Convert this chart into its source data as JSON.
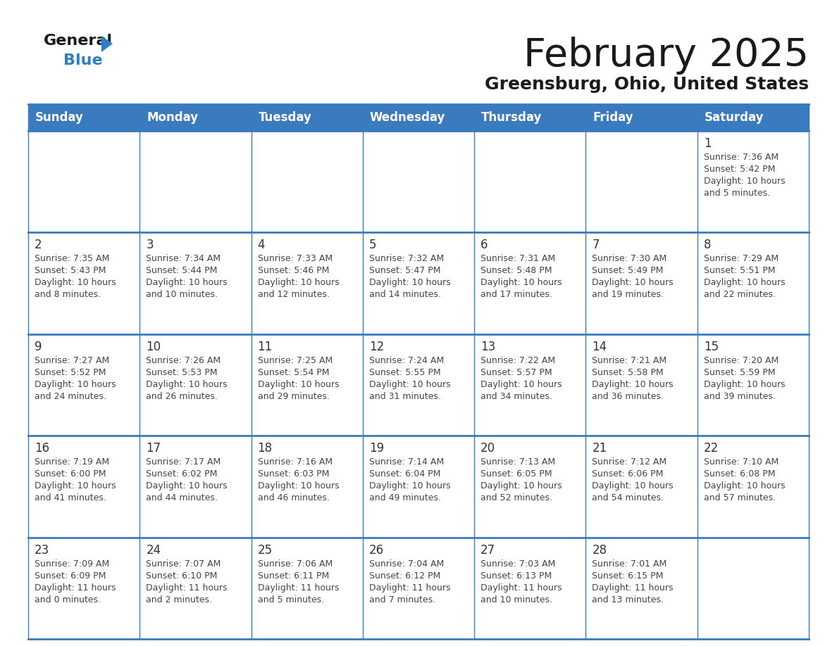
{
  "title": "February 2025",
  "subtitle": "Greensburg, Ohio, United States",
  "header_color": "#3a7bbf",
  "header_text_color": "#ffffff",
  "border_color": "#3a7bbf",
  "day_names": [
    "Sunday",
    "Monday",
    "Tuesday",
    "Wednesday",
    "Thursday",
    "Friday",
    "Saturday"
  ],
  "title_color": "#1a1a1a",
  "subtitle_color": "#1a1a1a",
  "day_number_color": "#333333",
  "info_color": "#444444",
  "logo_text_color": "#1a1a1a",
  "logo_blue_color": "#2e7fc1",
  "logo_triangle_color": "#2e7fc1",
  "calendar": [
    [
      null,
      null,
      null,
      null,
      null,
      null,
      {
        "day": 1,
        "sunrise": "7:36 AM",
        "sunset": "5:42 PM",
        "daylight": "10 hours and 5 minutes"
      }
    ],
    [
      {
        "day": 2,
        "sunrise": "7:35 AM",
        "sunset": "5:43 PM",
        "daylight": "10 hours and 8 minutes"
      },
      {
        "day": 3,
        "sunrise": "7:34 AM",
        "sunset": "5:44 PM",
        "daylight": "10 hours and 10 minutes"
      },
      {
        "day": 4,
        "sunrise": "7:33 AM",
        "sunset": "5:46 PM",
        "daylight": "10 hours and 12 minutes"
      },
      {
        "day": 5,
        "sunrise": "7:32 AM",
        "sunset": "5:47 PM",
        "daylight": "10 hours and 14 minutes"
      },
      {
        "day": 6,
        "sunrise": "7:31 AM",
        "sunset": "5:48 PM",
        "daylight": "10 hours and 17 minutes"
      },
      {
        "day": 7,
        "sunrise": "7:30 AM",
        "sunset": "5:49 PM",
        "daylight": "10 hours and 19 minutes"
      },
      {
        "day": 8,
        "sunrise": "7:29 AM",
        "sunset": "5:51 PM",
        "daylight": "10 hours and 22 minutes"
      }
    ],
    [
      {
        "day": 9,
        "sunrise": "7:27 AM",
        "sunset": "5:52 PM",
        "daylight": "10 hours and 24 minutes"
      },
      {
        "day": 10,
        "sunrise": "7:26 AM",
        "sunset": "5:53 PM",
        "daylight": "10 hours and 26 minutes"
      },
      {
        "day": 11,
        "sunrise": "7:25 AM",
        "sunset": "5:54 PM",
        "daylight": "10 hours and 29 minutes"
      },
      {
        "day": 12,
        "sunrise": "7:24 AM",
        "sunset": "5:55 PM",
        "daylight": "10 hours and 31 minutes"
      },
      {
        "day": 13,
        "sunrise": "7:22 AM",
        "sunset": "5:57 PM",
        "daylight": "10 hours and 34 minutes"
      },
      {
        "day": 14,
        "sunrise": "7:21 AM",
        "sunset": "5:58 PM",
        "daylight": "10 hours and 36 minutes"
      },
      {
        "day": 15,
        "sunrise": "7:20 AM",
        "sunset": "5:59 PM",
        "daylight": "10 hours and 39 minutes"
      }
    ],
    [
      {
        "day": 16,
        "sunrise": "7:19 AM",
        "sunset": "6:00 PM",
        "daylight": "10 hours and 41 minutes"
      },
      {
        "day": 17,
        "sunrise": "7:17 AM",
        "sunset": "6:02 PM",
        "daylight": "10 hours and 44 minutes"
      },
      {
        "day": 18,
        "sunrise": "7:16 AM",
        "sunset": "6:03 PM",
        "daylight": "10 hours and 46 minutes"
      },
      {
        "day": 19,
        "sunrise": "7:14 AM",
        "sunset": "6:04 PM",
        "daylight": "10 hours and 49 minutes"
      },
      {
        "day": 20,
        "sunrise": "7:13 AM",
        "sunset": "6:05 PM",
        "daylight": "10 hours and 52 minutes"
      },
      {
        "day": 21,
        "sunrise": "7:12 AM",
        "sunset": "6:06 PM",
        "daylight": "10 hours and 54 minutes"
      },
      {
        "day": 22,
        "sunrise": "7:10 AM",
        "sunset": "6:08 PM",
        "daylight": "10 hours and 57 minutes"
      }
    ],
    [
      {
        "day": 23,
        "sunrise": "7:09 AM",
        "sunset": "6:09 PM",
        "daylight": "11 hours and 0 minutes"
      },
      {
        "day": 24,
        "sunrise": "7:07 AM",
        "sunset": "6:10 PM",
        "daylight": "11 hours and 2 minutes"
      },
      {
        "day": 25,
        "sunrise": "7:06 AM",
        "sunset": "6:11 PM",
        "daylight": "11 hours and 5 minutes"
      },
      {
        "day": 26,
        "sunrise": "7:04 AM",
        "sunset": "6:12 PM",
        "daylight": "11 hours and 7 minutes"
      },
      {
        "day": 27,
        "sunrise": "7:03 AM",
        "sunset": "6:13 PM",
        "daylight": "11 hours and 10 minutes"
      },
      {
        "day": 28,
        "sunrise": "7:01 AM",
        "sunset": "6:15 PM",
        "daylight": "11 hours and 13 minutes"
      },
      null
    ]
  ]
}
